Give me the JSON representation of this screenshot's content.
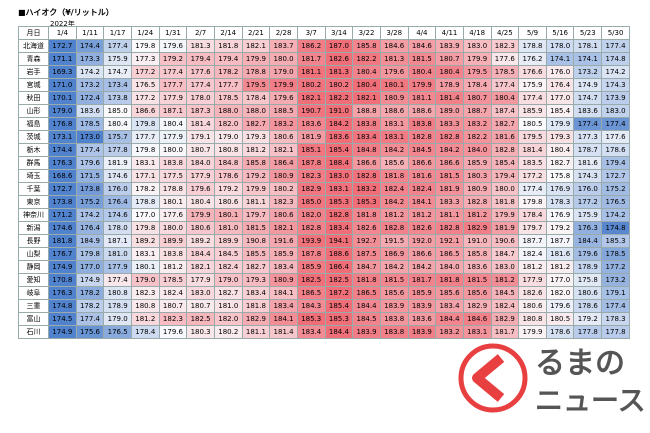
{
  "header": {
    "title": "■ハイオク（¥/リットル）",
    "year": "2022年",
    "corner": "月日"
  },
  "logo": {
    "line1": "るまの",
    "line2": "ニュース"
  },
  "table": {
    "columns": [
      "1/4",
      "1/11",
      "1/17",
      "1/24",
      "1/31",
      "2/7",
      "2/14",
      "2/21",
      "2/28",
      "3/7",
      "3/14",
      "3/22",
      "3/28",
      "4/4",
      "4/11",
      "4/18",
      "4/25",
      "5/9",
      "5/16",
      "5/23",
      "5/30"
    ],
    "rows": [
      {
        "name": "北海道",
        "values": [
          "172.7",
          "174.4",
          "177.4",
          "179.8",
          "179.6",
          "181.3",
          "181.8",
          "182.1",
          "183.7",
          "186.2",
          "187.0",
          "185.8",
          "184.6",
          "184.6",
          "183.9",
          "183.0",
          "182.3",
          "178.8",
          "178.0",
          "178.1",
          "177.4"
        ]
      },
      {
        "name": "青森",
        "values": [
          "171.1",
          "173.3",
          "175.9",
          "177.3",
          "179.2",
          "179.4",
          "179.4",
          "179.9",
          "180.0",
          "181.7",
          "182.6",
          "182.2",
          "181.3",
          "181.5",
          "180.7",
          "179.9",
          "177.6",
          "176.2",
          "174.1",
          "174.1",
          "174.8"
        ]
      },
      {
        "name": "岩手",
        "values": [
          "169.3",
          "174.2",
          "174.7",
          "177.2",
          "177.4",
          "177.6",
          "178.2",
          "178.8",
          "179.0",
          "181.1",
          "181.3",
          "180.4",
          "179.6",
          "180.4",
          "180.4",
          "179.5",
          "178.5",
          "176.6",
          "176.0",
          "173.2",
          "174.2"
        ]
      },
      {
        "name": "宮城",
        "values": [
          "171.0",
          "173.2",
          "173.4",
          "176.5",
          "177.7",
          "177.4",
          "177.7",
          "179.5",
          "179.9",
          "180.2",
          "180.2",
          "180.4",
          "180.1",
          "179.9",
          "178.9",
          "178.4",
          "177.4",
          "175.9",
          "176.4",
          "174.9",
          "174.3"
        ]
      },
      {
        "name": "秋田",
        "values": [
          "170.1",
          "172.4",
          "173.8",
          "177.2",
          "177.9",
          "178.0",
          "178.5",
          "178.4",
          "179.6",
          "182.1",
          "182.2",
          "182.1",
          "180.9",
          "181.1",
          "181.4",
          "180.7",
          "180.4",
          "177.4",
          "177.0",
          "174.7",
          "173.9"
        ]
      },
      {
        "name": "山形",
        "values": [
          "179.0",
          "183.6",
          "185.0",
          "186.6",
          "187.1",
          "187.3",
          "188.0",
          "188.0",
          "188.5",
          "190.7",
          "191.0",
          "188.8",
          "188.6",
          "188.6",
          "189.0",
          "188.7",
          "187.4",
          "185.9",
          "185.4",
          "183.6",
          "183.0"
        ]
      },
      {
        "name": "福島",
        "values": [
          "176.8",
          "178.5",
          "180.4",
          "179.8",
          "180.4",
          "181.4",
          "182.0",
          "182.7",
          "183.2",
          "183.6",
          "184.2",
          "183.8",
          "183.1",
          "183.8",
          "183.3",
          "183.2",
          "182.7",
          "180.5",
          "179.9",
          "177.4",
          "177.4"
        ]
      },
      {
        "name": "茨城",
        "values": [
          "173.1",
          "173.0",
          "175.7",
          "177.7",
          "177.9",
          "179.1",
          "179.0",
          "179.3",
          "180.6",
          "181.9",
          "183.6",
          "183.4",
          "183.1",
          "182.8",
          "182.8",
          "182.2",
          "181.6",
          "179.5",
          "179.3",
          "177.3",
          "177.6"
        ]
      },
      {
        "name": "栃木",
        "values": [
          "174.4",
          "177.4",
          "177.8",
          "179.8",
          "180.0",
          "180.7",
          "180.8",
          "181.2",
          "182.1",
          "185.1",
          "185.4",
          "184.8",
          "184.2",
          "184.5",
          "184.2",
          "184.0",
          "182.8",
          "181.4",
          "180.4",
          "178.7",
          "178.6"
        ]
      },
      {
        "name": "群馬",
        "values": [
          "176.3",
          "179.6",
          "181.9",
          "183.1",
          "183.8",
          "184.0",
          "184.8",
          "185.8",
          "186.4",
          "187.8",
          "188.4",
          "186.6",
          "185.6",
          "186.6",
          "186.6",
          "185.9",
          "185.4",
          "183.5",
          "182.7",
          "181.6",
          "179.4"
        ]
      },
      {
        "name": "埼玉",
        "values": [
          "168.6",
          "171.5",
          "174.6",
          "177.1",
          "177.5",
          "177.9",
          "178.6",
          "179.2",
          "180.9",
          "182.3",
          "183.0",
          "182.8",
          "181.8",
          "181.6",
          "181.5",
          "180.3",
          "179.4",
          "177.2",
          "175.8",
          "174.3",
          "172.7"
        ]
      },
      {
        "name": "千葉",
        "values": [
          "172.7",
          "173.8",
          "176.0",
          "178.2",
          "178.8",
          "179.6",
          "179.2",
          "179.9",
          "180.2",
          "182.9",
          "183.1",
          "183.2",
          "182.4",
          "182.4",
          "181.9",
          "180.9",
          "180.0",
          "177.4",
          "176.9",
          "176.0",
          "175.2"
        ]
      },
      {
        "name": "東京",
        "values": [
          "173.8",
          "175.2",
          "176.4",
          "178.8",
          "180.1",
          "180.4",
          "180.6",
          "181.1",
          "182.3",
          "185.0",
          "185.3",
          "185.3",
          "184.2",
          "184.1",
          "183.3",
          "182.8",
          "181.8",
          "179.8",
          "178.3",
          "177.2",
          "176.5"
        ]
      },
      {
        "name": "神奈川",
        "values": [
          "171.2",
          "174.2",
          "174.6",
          "177.0",
          "177.6",
          "179.9",
          "180.1",
          "179.7",
          "180.6",
          "182.0",
          "182.8",
          "181.8",
          "181.2",
          "181.2",
          "181.1",
          "181.2",
          "179.9",
          "178.4",
          "176.9",
          "175.9",
          "174.2"
        ]
      },
      {
        "name": "新潟",
        "values": [
          "174.6",
          "176.4",
          "178.0",
          "179.8",
          "180.0",
          "180.6",
          "181.0",
          "181.5",
          "182.1",
          "182.8",
          "183.4",
          "182.6",
          "182.8",
          "182.6",
          "182.8",
          "182.9",
          "181.9",
          "179.7",
          "179.2",
          "176.3",
          "174.8"
        ]
      },
      {
        "name": "長野",
        "values": [
          "181.8",
          "184.9",
          "187.1",
          "189.2",
          "189.9",
          "189.2",
          "189.9",
          "190.8",
          "191.6",
          "193.9",
          "194.1",
          "192.7",
          "191.5",
          "192.0",
          "192.1",
          "191.0",
          "190.6",
          "187.7",
          "187.7",
          "184.4",
          "185.3"
        ]
      },
      {
        "name": "山梨",
        "values": [
          "176.7",
          "179.8",
          "181.0",
          "183.1",
          "183.8",
          "184.4",
          "184.5",
          "185.5",
          "185.9",
          "187.8",
          "188.6",
          "187.5",
          "186.9",
          "186.6",
          "186.5",
          "185.8",
          "184.7",
          "182.4",
          "181.6",
          "179.6",
          "178.5"
        ]
      },
      {
        "name": "静岡",
        "values": [
          "174.9",
          "177.0",
          "177.9",
          "180.1",
          "181.2",
          "182.1",
          "182.4",
          "182.7",
          "183.4",
          "185.9",
          "186.4",
          "184.7",
          "184.2",
          "184.2",
          "184.0",
          "183.6",
          "183.0",
          "181.2",
          "181.2",
          "178.9",
          "177.2"
        ]
      },
      {
        "name": "愛知",
        "values": [
          "170.8",
          "174.9",
          "177.4",
          "179.0",
          "178.5",
          "177.9",
          "179.0",
          "179.3",
          "180.9",
          "182.5",
          "182.5",
          "181.8",
          "181.5",
          "181.7",
          "181.8",
          "181.5",
          "181.2",
          "177.9",
          "177.0",
          "175.8",
          "173.2"
        ]
      },
      {
        "name": "岐阜",
        "values": [
          "176.3",
          "178.2",
          "180.8",
          "182.3",
          "182.4",
          "183.0",
          "182.7",
          "183.4",
          "184.1",
          "186.5",
          "187.2",
          "186.5",
          "185.6",
          "185.9",
          "185.6",
          "185.6",
          "184.5",
          "182.6",
          "182.0",
          "180.6",
          "179.1"
        ]
      },
      {
        "name": "三重",
        "values": [
          "174.8",
          "178.2",
          "178.9",
          "180.8",
          "180.7",
          "180.7",
          "181.0",
          "181.8",
          "183.4",
          "184.3",
          "185.4",
          "184.4",
          "183.9",
          "183.9",
          "183.4",
          "182.9",
          "182.4",
          "180.6",
          "179.6",
          "178.6",
          "177.4"
        ]
      },
      {
        "name": "富山",
        "values": [
          "174.5",
          "177.4",
          "179.0",
          "181.2",
          "182.3",
          "182.5",
          "182.0",
          "182.9",
          "184.1",
          "185.3",
          "185.3",
          "184.5",
          "183.8",
          "183.6",
          "184.4",
          "184.6",
          "182.9",
          "180.8",
          "180.5",
          "179.2",
          "178.3"
        ]
      },
      {
        "name": "石川",
        "values": [
          "174.9",
          "175.6",
          "176.5",
          "178.4",
          "179.6",
          "180.3",
          "180.2",
          "181.1",
          "181.4",
          "183.4",
          "184.4",
          "183.9",
          "183.8",
          "183.9",
          "183.2",
          "183.1",
          "181.7",
          "179.9",
          "178.6",
          "177.8",
          "177.8"
        ]
      }
    ]
  }
}
